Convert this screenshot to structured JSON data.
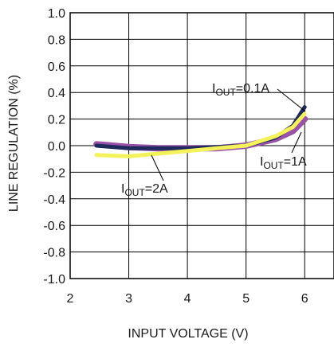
{
  "chart_data": {
    "type": "line",
    "xlabel": "INPUT VOLTAGE (V)",
    "ylabel": "LINE REGULATION (%)",
    "xlim": [
      2,
      6.5
    ],
    "ylim": [
      -1.0,
      1.0
    ],
    "x_ticks": [
      2,
      3,
      4,
      5,
      6
    ],
    "y_ticks": [
      1.0,
      0.8,
      0.6,
      0.4,
      0.2,
      0.0,
      -0.2,
      -0.4,
      -0.6,
      -0.8,
      -1.0
    ],
    "x_tick_labels": [
      "2",
      "3",
      "4",
      "5",
      "6"
    ],
    "y_tick_labels": [
      "1.0",
      "0.8",
      "0.6",
      "0.4",
      "0.2",
      "0.0",
      "-0.2",
      "-0.4",
      "-0.6",
      "-0.8",
      "-1.0"
    ],
    "grid": true,
    "series": [
      {
        "name_main": "I",
        "name_sub": "OUT",
        "name_rest": "=0.1A",
        "color": "#1f2a5c",
        "x": [
          2.45,
          3.0,
          3.5,
          4.0,
          4.5,
          5.0,
          5.5,
          5.8,
          6.0
        ],
        "y": [
          0.0,
          -0.02,
          -0.02,
          -0.02,
          -0.01,
          0.0,
          0.06,
          0.15,
          0.29
        ]
      },
      {
        "name_main": "I",
        "name_sub": "OUT",
        "name_rest": "=1A",
        "color": "#9a52a8",
        "x": [
          2.45,
          3.0,
          3.5,
          4.0,
          4.5,
          5.0,
          5.5,
          5.8,
          6.0
        ],
        "y": [
          0.01,
          -0.01,
          -0.02,
          -0.02,
          -0.02,
          0.0,
          0.05,
          0.11,
          0.2
        ]
      },
      {
        "name_main": "I",
        "name_sub": "OUT",
        "name_rest": "=2A",
        "color": "#f3f25a",
        "x": [
          2.45,
          3.0,
          3.5,
          4.0,
          4.5,
          5.0,
          5.5,
          5.8,
          6.0
        ],
        "y": [
          -0.07,
          -0.08,
          -0.06,
          -0.04,
          -0.02,
          0.0,
          0.07,
          0.14,
          0.24
        ]
      }
    ]
  }
}
